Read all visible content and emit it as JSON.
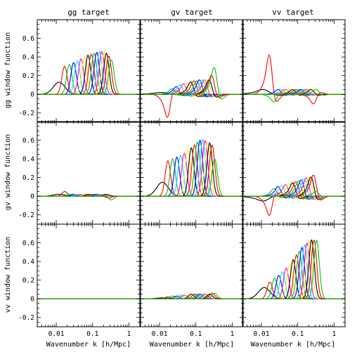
{
  "colors": [
    "#000000",
    "#ff0000",
    "#00cc00",
    "#0000ff",
    "#00e5ff",
    "#ff00ff",
    "#ffee00"
  ],
  "chart_data": {
    "type": "line",
    "layout": "3x3 grid, shared axes",
    "column_titles": [
      "gg target",
      "gv target",
      "vv target"
    ],
    "row_ylabels": [
      "gg window function",
      "gv window function",
      "vv window function"
    ],
    "xlabel": "Wavenumber k [h/Mpc]",
    "xscale": "log",
    "xlim": [
      0.003,
      2.0
    ],
    "ylim": [
      -0.3,
      0.8
    ],
    "xticks": [
      {
        "value": 0.01,
        "label": "0.01"
      },
      {
        "value": 0.1,
        "label": "0.1"
      },
      {
        "value": 1,
        "label": "1"
      }
    ],
    "yticks": [
      {
        "value": -0.2,
        "label": "-0.2"
      },
      {
        "value": 0,
        "label": "0"
      },
      {
        "value": 0.2,
        "label": "0.2"
      },
      {
        "value": 0.4,
        "label": "0.4"
      },
      {
        "value": 0.6,
        "label": "0.6"
      }
    ],
    "grid": false,
    "legend": "none",
    "series_per_panel": "about 20 window functions, one per target k bin, cycling black/red/green/blue/cyan/magenta/yellow",
    "bin_centers_k": [
      0.012,
      0.017,
      0.023,
      0.03,
      0.038,
      0.048,
      0.06,
      0.075,
      0.092,
      0.11,
      0.13,
      0.155,
      0.18,
      0.21,
      0.24,
      0.28,
      0.33
    ],
    "panels": [
      {
        "row": "gg",
        "col": "gg",
        "peak_heights": [
          0.13,
          0.3,
          0.32,
          0.34,
          0.36,
          0.38,
          0.4,
          0.42,
          0.43,
          0.44,
          0.45,
          0.46,
          0.46,
          0.45,
          0.44,
          0.41,
          0.37
        ],
        "oscillation": false
      },
      {
        "row": "gv",
        "col": "gg",
        "peak_heights": [
          0.02,
          0.05,
          0.02,
          0.02,
          0.02,
          0.02,
          0.02,
          0.02,
          0.02,
          0.02,
          0.02,
          0.02,
          0.02,
          0.02,
          0.02,
          -0.02,
          -0.04
        ],
        "oscillation": false
      },
      {
        "row": "vv",
        "col": "gg",
        "peak_heights": [
          0.0,
          0.0,
          0.0,
          0.0,
          0.0,
          0.0,
          0.0,
          0.0,
          0.0,
          0.0,
          0.0,
          0.0,
          0.0,
          0.0,
          0.0,
          0.0,
          0.0
        ],
        "oscillation": false
      },
      {
        "row": "gg",
        "col": "gv",
        "peak_heights": [
          0.02,
          -0.24,
          0.06,
          0.08,
          0.1,
          0.11,
          0.12,
          0.13,
          0.14,
          0.14,
          0.15,
          0.15,
          0.15,
          0.15,
          0.15,
          0.2,
          0.28
        ],
        "oscillation": true
      },
      {
        "row": "gv",
        "col": "gv",
        "peak_heights": [
          0.15,
          0.38,
          0.4,
          0.42,
          0.44,
          0.46,
          0.49,
          0.52,
          0.55,
          0.58,
          0.6,
          0.61,
          0.6,
          0.59,
          0.57,
          0.55,
          0.4
        ],
        "oscillation": false
      },
      {
        "row": "vv",
        "col": "gv",
        "peak_heights": [
          0.01,
          0.02,
          0.03,
          0.03,
          0.04,
          0.04,
          0.04,
          0.05,
          0.05,
          0.05,
          0.05,
          0.05,
          0.05,
          0.05,
          0.05,
          0.06,
          0.06
        ],
        "oscillation": false
      },
      {
        "row": "gg",
        "col": "vv",
        "peak_heights": [
          0.05,
          0.41,
          -0.08,
          0.05,
          0.05,
          0.05,
          0.05,
          0.05,
          0.05,
          0.05,
          0.05,
          0.05,
          0.05,
          0.05,
          0.05,
          -0.1,
          0.05
        ],
        "oscillation": true
      },
      {
        "row": "gv",
        "col": "vv",
        "peak_heights": [
          -0.05,
          -0.2,
          0.08,
          0.1,
          0.11,
          0.12,
          0.13,
          0.14,
          0.15,
          0.16,
          0.17,
          0.18,
          0.19,
          0.2,
          0.2,
          0.22,
          0.05
        ],
        "oscillation": true
      },
      {
        "row": "vv",
        "col": "vv",
        "peak_heights": [
          0.12,
          0.18,
          0.22,
          0.25,
          0.29,
          0.33,
          0.37,
          0.42,
          0.47,
          0.51,
          0.55,
          0.58,
          0.6,
          0.62,
          0.63,
          0.63,
          0.63
        ],
        "oscillation": false
      }
    ]
  }
}
